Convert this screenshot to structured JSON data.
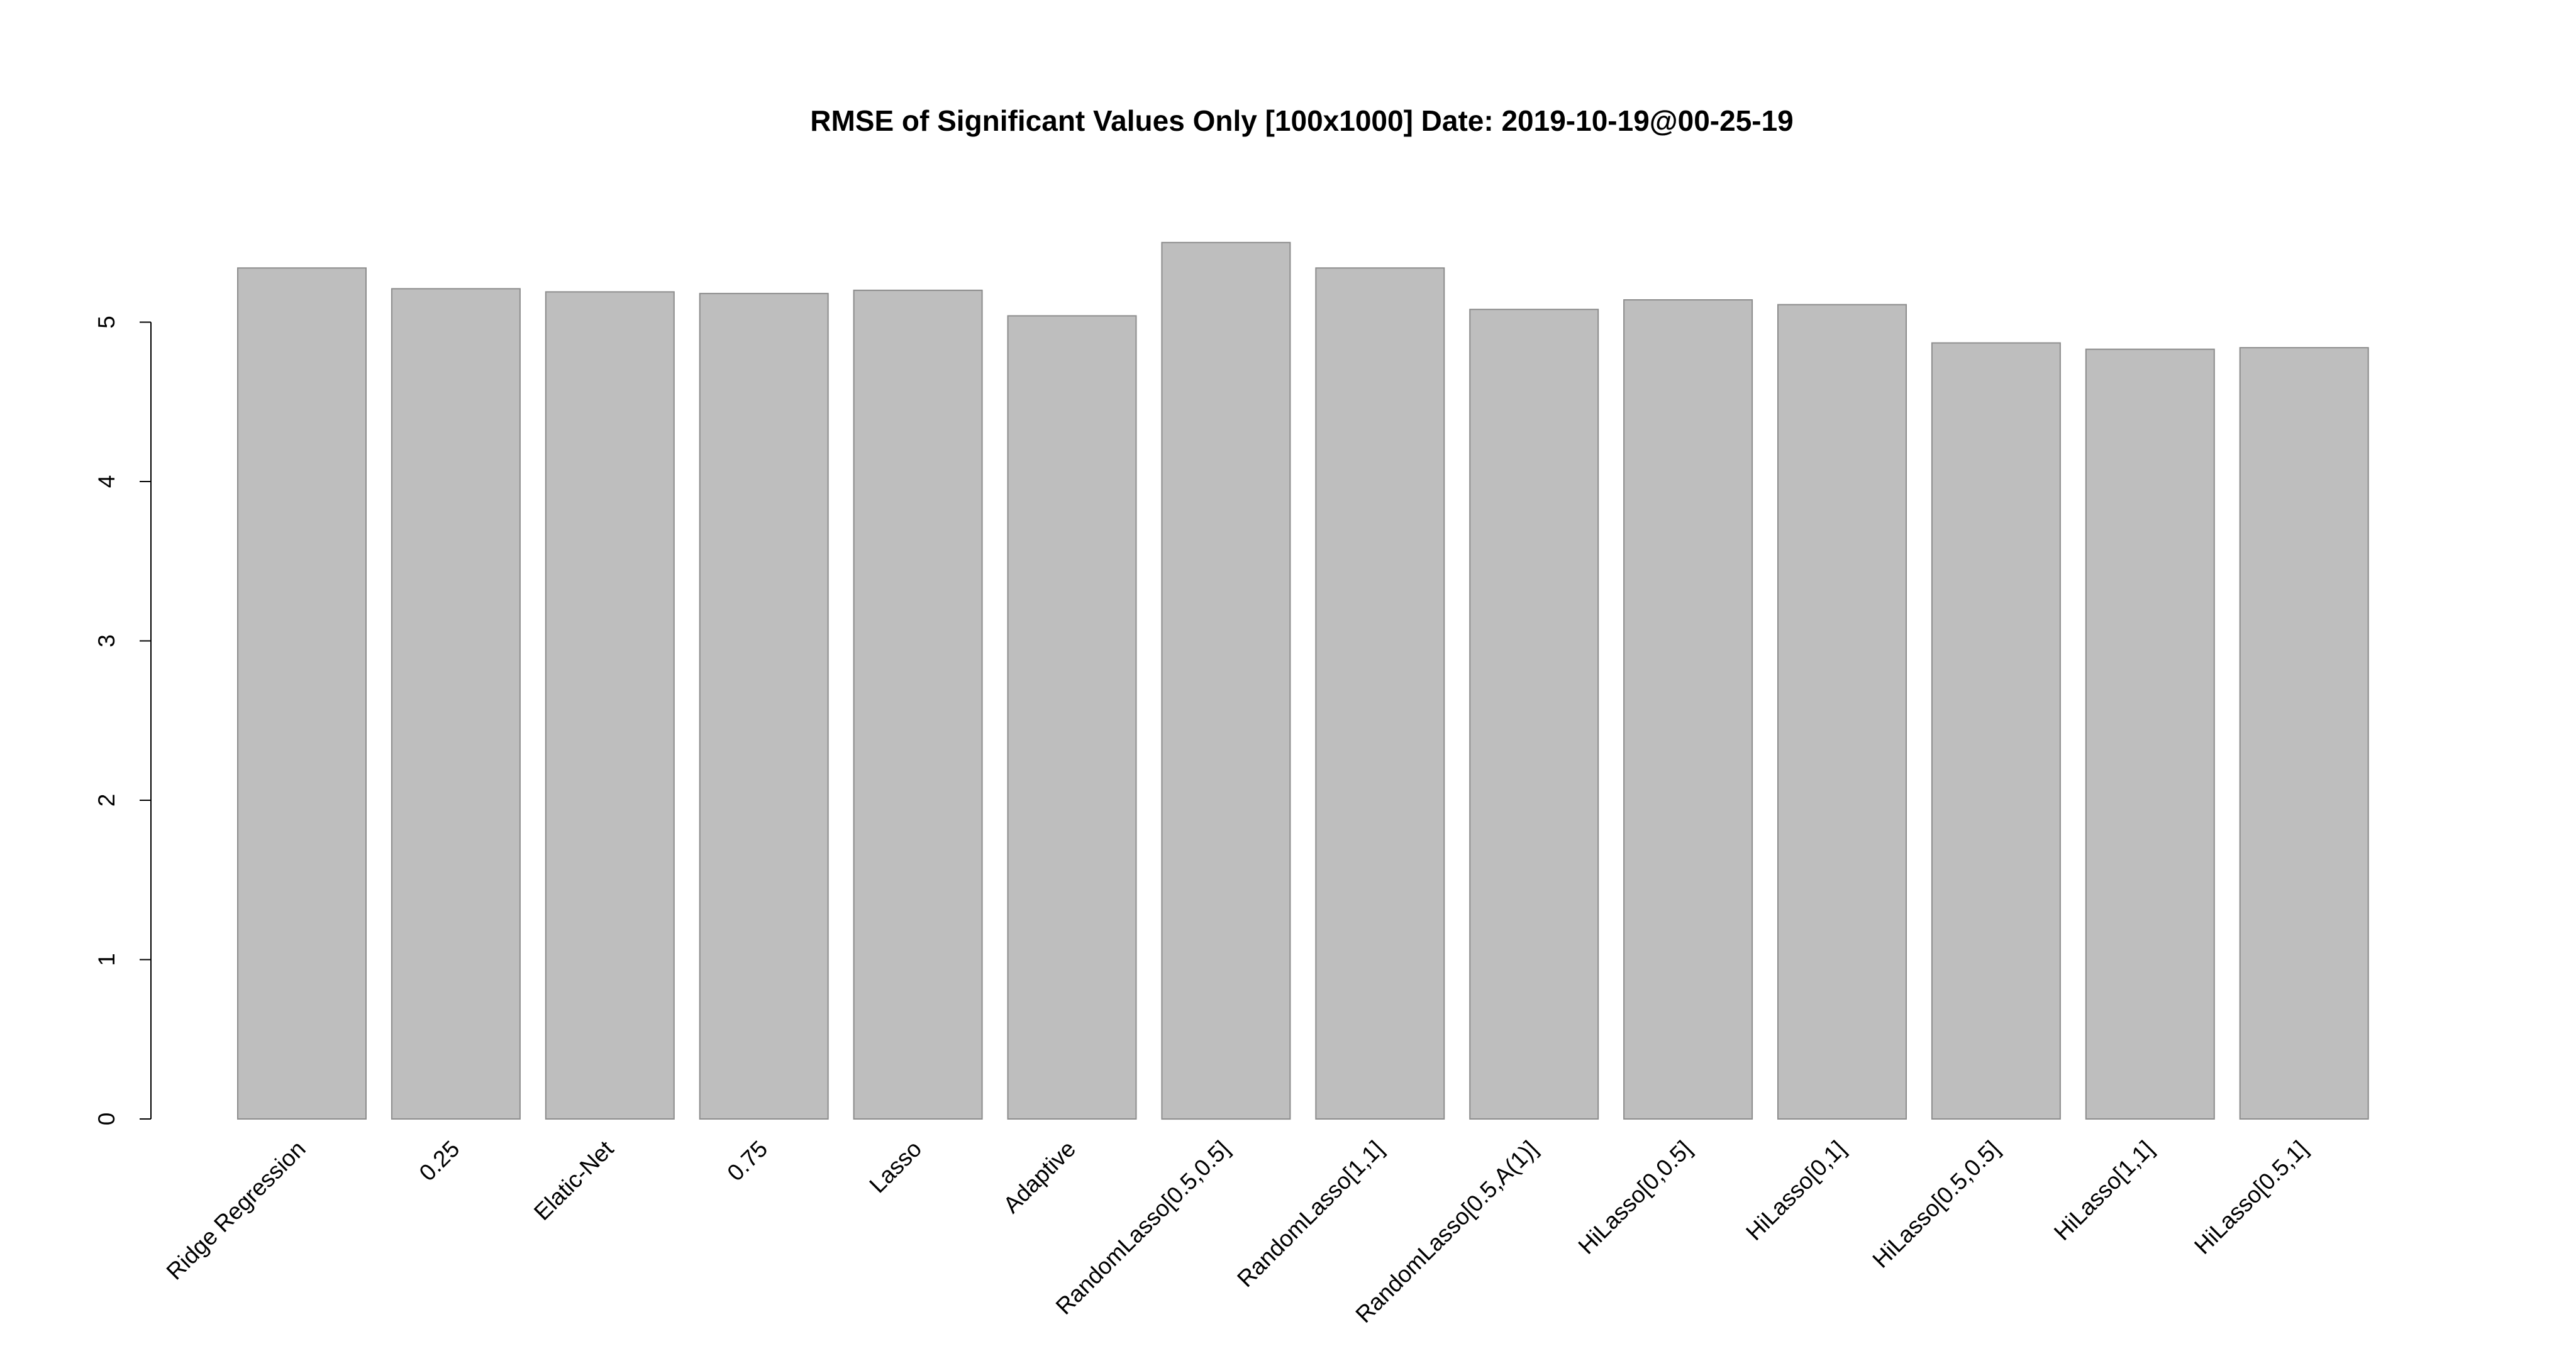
{
  "chart_data": {
    "type": "bar",
    "title": "RMSE of Significant Values Only [100x1000] Date: 2019-10-19@00-25-19",
    "xlabel": "",
    "ylabel": "",
    "categories": [
      "Ridge Regression",
      "0.25",
      "Elatic-Net",
      "0.75",
      "Lasso",
      "Adaptive",
      "RandomLasso[0.5,0.5]",
      "RandomLasso[1,1]",
      "RandomLasso[0.5,A(1)]",
      "HiLasso[0,0.5]",
      "HiLasso[0,1]",
      "HiLasso[0.5,0.5]",
      "HiLasso[1,1]",
      "HiLasso[0.5,1]"
    ],
    "values": [
      5.34,
      5.21,
      5.19,
      5.18,
      5.2,
      5.04,
      5.5,
      5.34,
      5.08,
      5.14,
      5.11,
      4.87,
      4.83,
      4.84
    ],
    "y_ticks": [
      "0",
      "1",
      "2",
      "3",
      "4",
      "5"
    ],
    "ylim": [
      0,
      5.5
    ],
    "grid": false,
    "legend": "none",
    "colors": {
      "bar_fill": "#bebebe",
      "bar_stroke": "#8c8c8c",
      "axis": "#000000"
    }
  }
}
